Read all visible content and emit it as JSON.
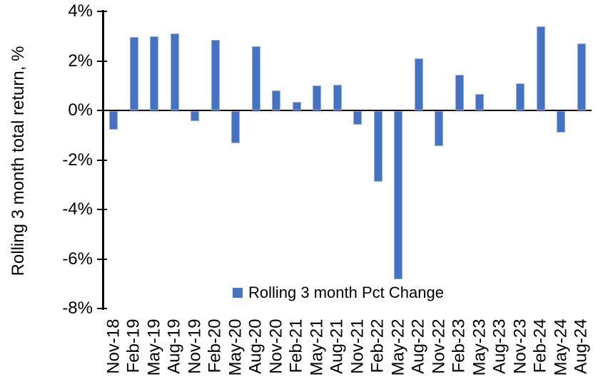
{
  "chart": {
    "background_color": "#FFFFFF",
    "text_color": "#000000"
  },
  "chart_data": {
    "type": "bar",
    "title": "",
    "xlabel": "",
    "ylabel": "Rolling 3 month total return, %",
    "legend": [
      "Rolling 3 month Pct Change"
    ],
    "legend_position": "bottom-center-inside-plot",
    "grid": false,
    "ylim": [
      -8,
      4
    ],
    "yticks": [
      4,
      2,
      0,
      -2,
      -4,
      -6,
      -8
    ],
    "ytick_labels": [
      "4%",
      "2%",
      "0%",
      "-2%",
      "-4%",
      "-6%",
      "-8%"
    ],
    "categories": [
      "Nov-18",
      "Feb-19",
      "May-19",
      "Aug-19",
      "Nov-19",
      "Feb-20",
      "May-20",
      "Aug-20",
      "Nov-20",
      "Feb-21",
      "May-21",
      "Aug-21",
      "Nov-21",
      "Feb-22",
      "May-22",
      "Aug-22",
      "Nov-22",
      "Feb-23",
      "May-23",
      "Aug-23",
      "Nov-23",
      "Feb-24",
      "May-24",
      "Aug-24"
    ],
    "values": [
      -0.75,
      2.95,
      3.0,
      3.1,
      -0.4,
      2.85,
      -1.3,
      2.6,
      0.8,
      0.35,
      1.0,
      1.05,
      -0.55,
      -2.85,
      -6.8,
      2.1,
      -1.4,
      1.45,
      0.65,
      0.0,
      1.1,
      3.4,
      -0.85,
      2.7
    ],
    "bar_color": "#4472C4",
    "bar_edge_color": "#94AEDD",
    "axis_color": "#000000"
  }
}
